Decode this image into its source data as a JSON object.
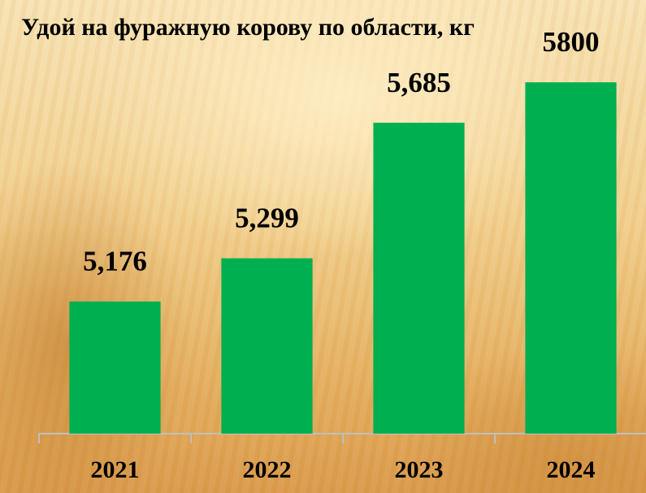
{
  "chart_data": {
    "type": "bar",
    "title": "Удой на фуражную корову по области, кг",
    "categories": [
      "2021",
      "2022",
      "2023",
      "2024"
    ],
    "values": [
      5176,
      5299,
      5685,
      5800
    ],
    "value_labels": [
      "5,176",
      "5,299",
      "5,685",
      "5800"
    ],
    "color": "#00b050",
    "ylim": [
      4800,
      5900
    ]
  }
}
